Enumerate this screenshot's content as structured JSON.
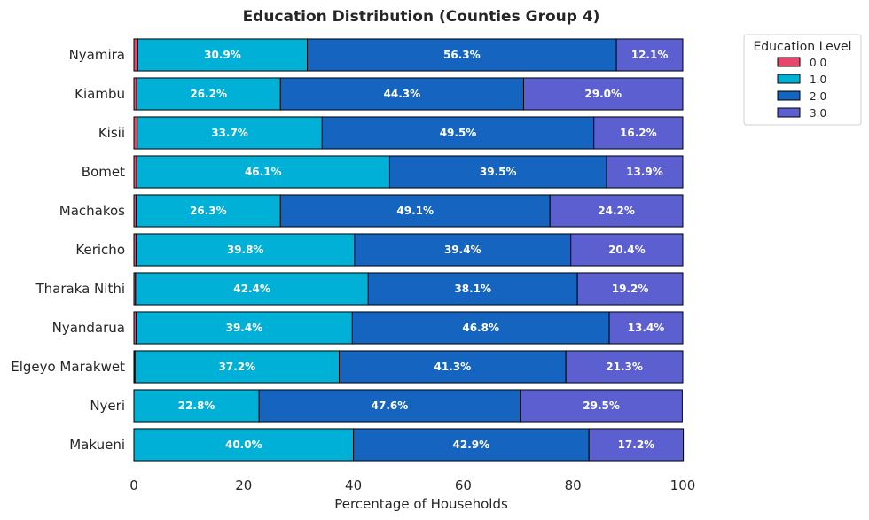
{
  "chart_data": {
    "type": "bar",
    "orientation": "horizontal",
    "stacked": true,
    "title": "Education Distribution (Counties Group 4)",
    "xlabel": "Percentage of Households",
    "ylabel": "",
    "xlim": [
      0,
      100
    ],
    "xticks": [
      "0",
      "20",
      "40",
      "60",
      "80",
      "100"
    ],
    "grid": false,
    "legend_position": "outside-top-right",
    "legend_title": "Education Level",
    "categories": [
      "Nyamira",
      "Kiambu",
      "Kisii",
      "Bomet",
      "Machakos",
      "Kericho",
      "Tharaka Nithi",
      "Nyandarua",
      "Elgeyo Marakwet",
      "Nyeri",
      "Makueni"
    ],
    "series": [
      {
        "name": "0.0",
        "color": "#e8476b",
        "values": [
          0.7,
          0.5,
          0.6,
          0.5,
          0.4,
          0.4,
          0.3,
          0.4,
          0.2,
          0.0,
          0.0
        ],
        "labels": [
          "",
          "",
          "",
          "",
          "",
          "",
          "",
          "",
          "",
          "",
          ""
        ]
      },
      {
        "name": "1.0",
        "color": "#00b0d6",
        "values": [
          30.9,
          26.2,
          33.7,
          46.1,
          26.3,
          39.8,
          42.4,
          39.4,
          37.2,
          22.8,
          40.0
        ],
        "labels": [
          "30.9%",
          "26.2%",
          "33.7%",
          "46.1%",
          "26.3%",
          "39.8%",
          "42.4%",
          "39.4%",
          "37.2%",
          "22.8%",
          "40.0%"
        ]
      },
      {
        "name": "2.0",
        "color": "#1565c0",
        "values": [
          56.3,
          44.3,
          49.5,
          39.5,
          49.1,
          39.4,
          38.1,
          46.8,
          41.3,
          47.6,
          42.9
        ],
        "labels": [
          "56.3%",
          "44.3%",
          "49.5%",
          "39.5%",
          "49.1%",
          "39.4%",
          "38.1%",
          "46.8%",
          "41.3%",
          "47.6%",
          "42.9%"
        ]
      },
      {
        "name": "3.0",
        "color": "#5b5fcf",
        "values": [
          12.1,
          29.0,
          16.2,
          13.9,
          24.2,
          20.4,
          19.2,
          13.4,
          21.3,
          29.5,
          17.2
        ],
        "labels": [
          "12.1%",
          "29.0%",
          "16.2%",
          "13.9%",
          "24.2%",
          "20.4%",
          "19.2%",
          "13.4%",
          "21.3%",
          "29.5%",
          "17.2%"
        ]
      }
    ]
  }
}
